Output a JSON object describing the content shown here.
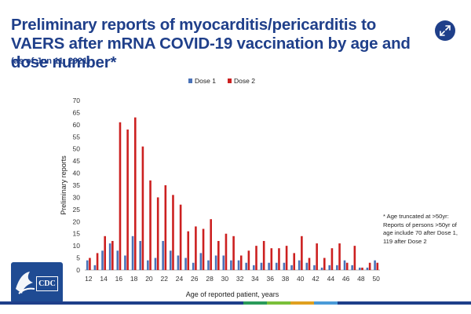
{
  "header": {
    "title": "Preliminary reports of myocarditis/pericarditis to VAERS after mRNA COVID-19 vaccination by age and dose number*",
    "subtitle": "(as of Jun 11, 2021)"
  },
  "note": "* Age truncated at >50yr: Reports of persons >50yr of age include 70 after Dose 1, 119 after Dose 2",
  "logo": {
    "text": "CDC"
  },
  "colors": {
    "dose1": "#4a72b8",
    "dose2": "#cc2020",
    "title": "#1f3f8a",
    "bottom_bar": [
      "#1f3f8a",
      "#1f3f8a",
      "#1f3f8a",
      "#1f3f8a",
      "#1f3f8a",
      "#2a9a5a",
      "#7abf3a",
      "#e0a020",
      "#4a9ad8",
      "#1f3f8a"
    ]
  },
  "chart_data": {
    "type": "bar",
    "title": "",
    "xlabel": "Age of reported patient, years",
    "ylabel": "Preliminary reports",
    "ylim": [
      0,
      70
    ],
    "yticks": [
      0,
      5,
      10,
      15,
      20,
      25,
      30,
      35,
      40,
      45,
      50,
      55,
      60,
      65,
      70
    ],
    "legend_position": "top-center",
    "categories": [
      12,
      13,
      14,
      15,
      16,
      17,
      18,
      19,
      20,
      21,
      22,
      23,
      24,
      25,
      26,
      27,
      28,
      29,
      30,
      31,
      32,
      33,
      34,
      35,
      36,
      37,
      38,
      39,
      40,
      41,
      42,
      43,
      44,
      45,
      46,
      47,
      48,
      49,
      50
    ],
    "x_tick_labels": [
      "12",
      "14",
      "16",
      "18",
      "20",
      "22",
      "24",
      "26",
      "28",
      "30",
      "32",
      "34",
      "36",
      "38",
      "40",
      "42",
      "44",
      "46",
      "48",
      "50"
    ],
    "series": [
      {
        "name": "Dose 1",
        "values": [
          4,
          2,
          8,
          11,
          8,
          6,
          14,
          12,
          4,
          5,
          12,
          8,
          6,
          5,
          3,
          7,
          4,
          6,
          6,
          4,
          4,
          3,
          2,
          3,
          3,
          3,
          3,
          2,
          4,
          3,
          2,
          1,
          2,
          2,
          4,
          2,
          1,
          1,
          4
        ]
      },
      {
        "name": "Dose 2",
        "values": [
          5,
          7,
          14,
          12,
          61,
          58,
          63,
          51,
          37,
          30,
          35,
          31,
          27,
          16,
          18,
          17,
          21,
          12,
          15,
          14,
          6,
          8,
          10,
          12,
          9,
          9,
          10,
          7,
          14,
          5,
          11,
          5,
          9,
          11,
          3,
          10,
          1,
          3,
          3
        ]
      }
    ]
  }
}
